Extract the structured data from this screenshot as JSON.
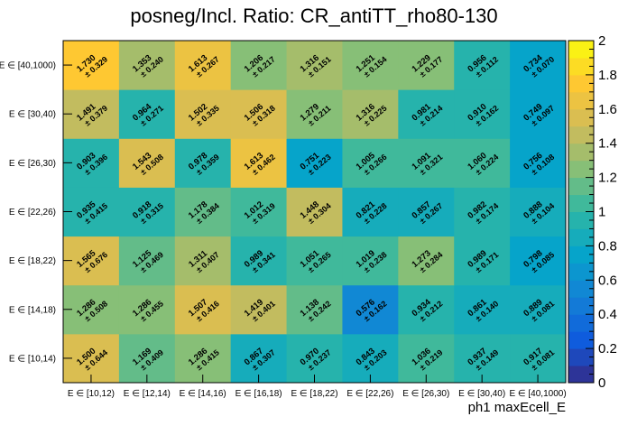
{
  "chart_data": {
    "type": "heatmap",
    "title": "posneg/Incl. Ratio: CR_antiTT_rho80-130",
    "xlabel": "ph1 maxEcell_E",
    "ylabel": "",
    "x_categories": [
      "E ∈ [10,12)",
      "E ∈ [12,14)",
      "E ∈ [14,16)",
      "E ∈ [16,18)",
      "E ∈ [18,22)",
      "E ∈ [22,26)",
      "E ∈ [26,30)",
      "E ∈ [30,40)",
      "E ∈ [40,1000)"
    ],
    "y_categories": [
      "E ∈ [10,14)",
      "E ∈ [14,18)",
      "E ∈ [18,22)",
      "E ∈ [22,26)",
      "E ∈ [26,30)",
      "E ∈ [30,40)",
      "E ∈ [40,1000)"
    ],
    "values": [
      [
        1.5,
        1.169,
        1.286,
        0.867,
        0.97,
        0.843,
        1.036,
        0.937,
        0.917
      ],
      [
        1.286,
        1.286,
        1.507,
        1.419,
        1.138,
        0.576,
        0.934,
        0.861,
        0.889
      ],
      [
        1.565,
        1.125,
        1.311,
        0.989,
        1.051,
        1.019,
        1.273,
        0.989,
        0.798
      ],
      [
        0.935,
        0.918,
        1.178,
        1.012,
        1.448,
        0.821,
        0.857,
        0.982,
        0.888
      ],
      [
        0.903,
        1.543,
        0.978,
        1.613,
        0.751,
        1.005,
        1.091,
        1.06,
        0.756
      ],
      [
        1.491,
        0.964,
        1.502,
        1.506,
        1.279,
        1.316,
        0.981,
        0.91,
        0.749
      ],
      [
        1.73,
        1.353,
        1.613,
        1.206,
        1.316,
        1.251,
        1.229,
        0.956,
        0.734
      ]
    ],
    "value_labels": [
      [
        "1.500",
        "1.169",
        "1.286",
        "0.867",
        "0.970",
        "0.843",
        "1.036",
        "0.937",
        "0.917"
      ],
      [
        "1.286",
        "1.286",
        "1.507",
        "1.419",
        "1.138",
        "0.576",
        "0.934",
        "0.861",
        "0.889"
      ],
      [
        "1.565",
        "1.125",
        "1.311",
        "0.989",
        "1.051",
        "1.019",
        "1.273",
        "0.989",
        "0.798"
      ],
      [
        "0.935",
        "0.918",
        "1.178",
        "1.012",
        "1.448",
        "0.821",
        "0.857",
        "0.982",
        "0.888"
      ],
      [
        "0.903",
        "1.543",
        "0.978",
        "1.613",
        "0.751",
        "1.005",
        "1.091",
        "1.060",
        "0.756"
      ],
      [
        "1.491",
        "0.964",
        "1.502",
        "1.506",
        "1.279",
        "1.316",
        "0.981",
        "0.910",
        "0.749"
      ],
      [
        "1.730",
        "1.353",
        "1.613",
        "1.206",
        "1.316",
        "1.251",
        "1.229",
        "0.956",
        "0.734"
      ]
    ],
    "error_labels": [
      [
        "± 0.644",
        "± 0.409",
        "± 0.415",
        "± 0.307",
        "± 0.237",
        "± 0.203",
        "± 0.219",
        "± 0.149",
        "± 0.081"
      ],
      [
        "± 0.508",
        "± 0.455",
        "± 0.416",
        "± 0.401",
        "± 0.242",
        "± 0.162",
        "± 0.212",
        "± 0.140",
        "± 0.081"
      ],
      [
        "± 0.676",
        "± 0.469",
        "± 0.407",
        "± 0.341",
        "± 0.265",
        "± 0.238",
        "± 0.284",
        "± 0.171",
        "± 0.085"
      ],
      [
        "± 0.415",
        "± 0.315",
        "± 0.384",
        "± 0.319",
        "± 0.304",
        "± 0.228",
        "± 0.267",
        "± 0.174",
        "± 0.104"
      ],
      [
        "± 0.396",
        "± 0.508",
        "± 0.359",
        "± 0.462",
        "± 0.223",
        "± 0.266",
        "± 0.321",
        "± 0.224",
        "± 0.108"
      ],
      [
        "± 0.379",
        "± 0.271",
        "± 0.335",
        "± 0.318",
        "± 0.211",
        "± 0.225",
        "± 0.214",
        "± 0.162",
        "± 0.097"
      ],
      [
        "± 0.329",
        "± 0.240",
        "± 0.267",
        "± 0.217",
        "± 0.151",
        "± 0.154",
        "± 0.177",
        "± 0.112",
        "± 0.070"
      ]
    ],
    "zlim": [
      0,
      2
    ],
    "z_ticks": [
      "0",
      "0.2",
      "0.4",
      "0.6",
      "0.8",
      "1",
      "1.2",
      "1.4",
      "1.6",
      "1.8",
      "2"
    ],
    "colormap": "parula",
    "colormap_stops": [
      "#352a87",
      "#0f5cdd",
      "#1481d6",
      "#06a4ca",
      "#2eb7a4",
      "#87bf77",
      "#d1bb59",
      "#fec832",
      "#f9fb0e"
    ],
    "grid": false,
    "legend": "colorbar-right"
  }
}
